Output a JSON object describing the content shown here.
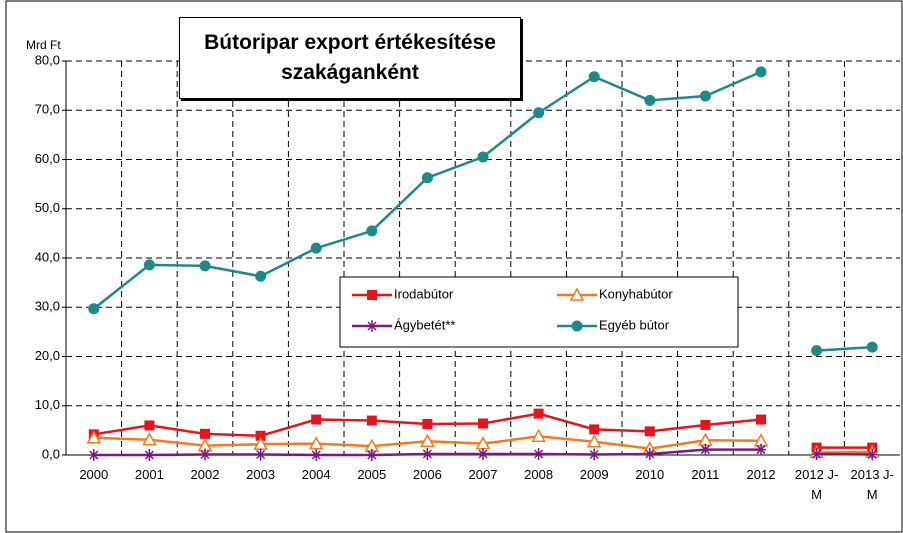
{
  "chart_data": {
    "type": "line",
    "title": "Bútoripar export értékesítése szakáganként",
    "y_label": "Mrd Ft",
    "categories": [
      "2000",
      "2001",
      "2002",
      "2003",
      "2004",
      "2005",
      "2006",
      "2007",
      "2008",
      "2009",
      "2010",
      "2011",
      "2012",
      "2012 J-M",
      "2013 J-M"
    ],
    "series": [
      {
        "name": "Irodabútor",
        "color": "#e8141b",
        "marker": "square",
        "values": [
          4.2,
          6.0,
          4.3,
          3.9,
          7.2,
          7.0,
          6.3,
          6.4,
          8.4,
          5.2,
          4.8,
          6.1,
          7.2,
          1.5,
          1.5
        ]
      },
      {
        "name": "Konyhabútor",
        "color": "#f47a20",
        "marker": "triangle",
        "values": [
          3.5,
          3.1,
          1.9,
          2.2,
          2.3,
          1.8,
          2.8,
          2.3,
          3.8,
          2.7,
          1.3,
          3.0,
          2.9,
          0.5,
          0.6
        ]
      },
      {
        "name": "Ágybetét**",
        "color": "#7b1a82",
        "marker": "asterisk",
        "values": [
          0.0,
          0.0,
          0.1,
          0.1,
          0.0,
          0.0,
          0.2,
          0.2,
          0.2,
          0.1,
          0.2,
          1.1,
          1.1,
          0.2,
          0.1
        ]
      },
      {
        "name": "Egyéb bútor",
        "color": "#1e8a88",
        "marker": "circle",
        "values": [
          29.7,
          38.6,
          38.4,
          36.3,
          42.0,
          45.5,
          56.3,
          60.5,
          69.5,
          76.8,
          72.0,
          72.9,
          77.8,
          21.2,
          21.9
        ]
      }
    ],
    "ylim": [
      0,
      80
    ],
    "yticks": [
      {
        "value": 0,
        "label": "0,0"
      },
      {
        "value": 10,
        "label": "10,0"
      },
      {
        "value": 20,
        "label": "20,0"
      },
      {
        "value": 30,
        "label": "30,0"
      },
      {
        "value": 40,
        "label": "40,0"
      },
      {
        "value": 50,
        "label": "50,0"
      },
      {
        "value": 60,
        "label": "60,0"
      },
      {
        "value": 70,
        "label": "70,0"
      },
      {
        "value": 80,
        "label": "80,0"
      }
    ],
    "grid": true
  }
}
